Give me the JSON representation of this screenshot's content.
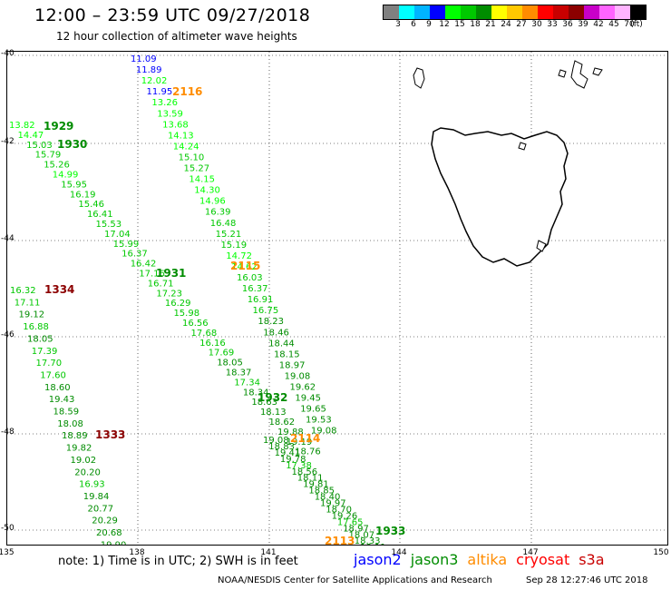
{
  "header": {
    "title": "12:00 – 23:59 UTC 09/27/2018",
    "subtitle": "12 hour collection of altimeter wave heights"
  },
  "legend": {
    "colors": [
      "#808080",
      "#00ffff",
      "#00b4ff",
      "#0000ff",
      "#00ff00",
      "#00c800",
      "#008c00",
      "#ffff00",
      "#ffc800",
      "#ff8c00",
      "#ff0000",
      "#c80000",
      "#8c0000",
      "#c800c8",
      "#ff64ff",
      "#ffb4ff",
      "#000000"
    ],
    "labels": [
      "3",
      "6",
      "9",
      "12",
      "15",
      "18",
      "21",
      "24",
      "27",
      "30",
      "33",
      "36",
      "39",
      "42",
      "45",
      "70",
      "(ft)"
    ]
  },
  "axes": {
    "lat_labels": [
      "-40",
      "-42",
      "-44",
      "-46",
      "-48",
      "-50"
    ],
    "lon_labels": [
      "135",
      "138",
      "141",
      "144",
      "147",
      "150"
    ]
  },
  "passes": [
    {
      "label": "1929",
      "color": "#008c00"
    },
    {
      "label": "1930",
      "color": "#008c00"
    },
    {
      "label": "2116",
      "color": "#ff8c00"
    },
    {
      "label": "1931",
      "color": "#008c00"
    },
    {
      "label": "2115",
      "color": "#ff8c00"
    },
    {
      "label": "1334",
      "color": "#8c0000"
    },
    {
      "label": "1932",
      "color": "#008c00"
    },
    {
      "label": "1333",
      "color": "#8c0000"
    },
    {
      "label": "2114",
      "color": "#ff8c00"
    },
    {
      "label": "1933",
      "color": "#008c00"
    },
    {
      "label": "2113",
      "color": "#ff8c00"
    }
  ],
  "tracks": {
    "track_a": [
      "11.09",
      "11.89",
      "12.02",
      "11.95",
      "13.26",
      "13.59",
      "13.68",
      "14.13",
      "14.24",
      "15.10",
      "15.27",
      "14.15",
      "14.30",
      "14.96",
      "16.39",
      "16.48",
      "15.21",
      "15.19",
      "14.72",
      "14.62",
      "16.03",
      "16.37",
      "16.91",
      "16.75",
      "18.23",
      "18.46",
      "18.44",
      "18.15",
      "18.97",
      "19.08",
      "19.62",
      "19.45",
      "19.65",
      "19.53",
      "19.08"
    ],
    "track_b": [
      "13.82",
      "14.47",
      "15.03",
      "15.79",
      "15.26",
      "14.99",
      "15.95",
      "16.19",
      "15.46",
      "16.41",
      "15.53",
      "17.04",
      "15.99",
      "16.37",
      "16.42",
      "17.16",
      "16.71",
      "17.23",
      "16.29",
      "15.98",
      "16.56",
      "17.68",
      "16.16",
      "17.69",
      "18.05",
      "18.37",
      "17.34",
      "18.34",
      "18.63",
      "18.13",
      "18.62",
      "19.88",
      "19.19",
      "18.76"
    ],
    "track_c": [
      "19.08",
      "18.83",
      "19.41",
      "19.78",
      "17.38",
      "18.56",
      "18.11",
      "19.81",
      "18.85",
      "18.40",
      "19.97",
      "18.70",
      "19.26",
      "17.65",
      "18.97",
      "18.07",
      "18.33",
      "18.11"
    ],
    "track_d": [
      "16.32",
      "17.11",
      "19.12",
      "16.88",
      "18.05",
      "17.39",
      "17.70",
      "17.60",
      "18.60",
      "19.43",
      "18.59",
      "18.08",
      "18.89",
      "19.82",
      "19.02",
      "20.20",
      "16.93",
      "19.84",
      "20.77",
      "20.29",
      "20.68",
      "19.90"
    ]
  },
  "footer": {
    "note": "note:  1) Time is in UTC; 2) SWH is in feet",
    "missions": [
      {
        "name": "jason2",
        "color": "#0000ff"
      },
      {
        "name": "jason3",
        "color": "#008c00"
      },
      {
        "name": "altika",
        "color": "#ff8c00"
      },
      {
        "name": "cryosat",
        "color": "#ff0000"
      },
      {
        "name": "s3a",
        "color": "#c80000"
      }
    ],
    "credit": "NOAA/NESDIS Center for Satellite Applications and Research",
    "timestamp": "Sep 28 12:27:46 UTC 2018"
  }
}
